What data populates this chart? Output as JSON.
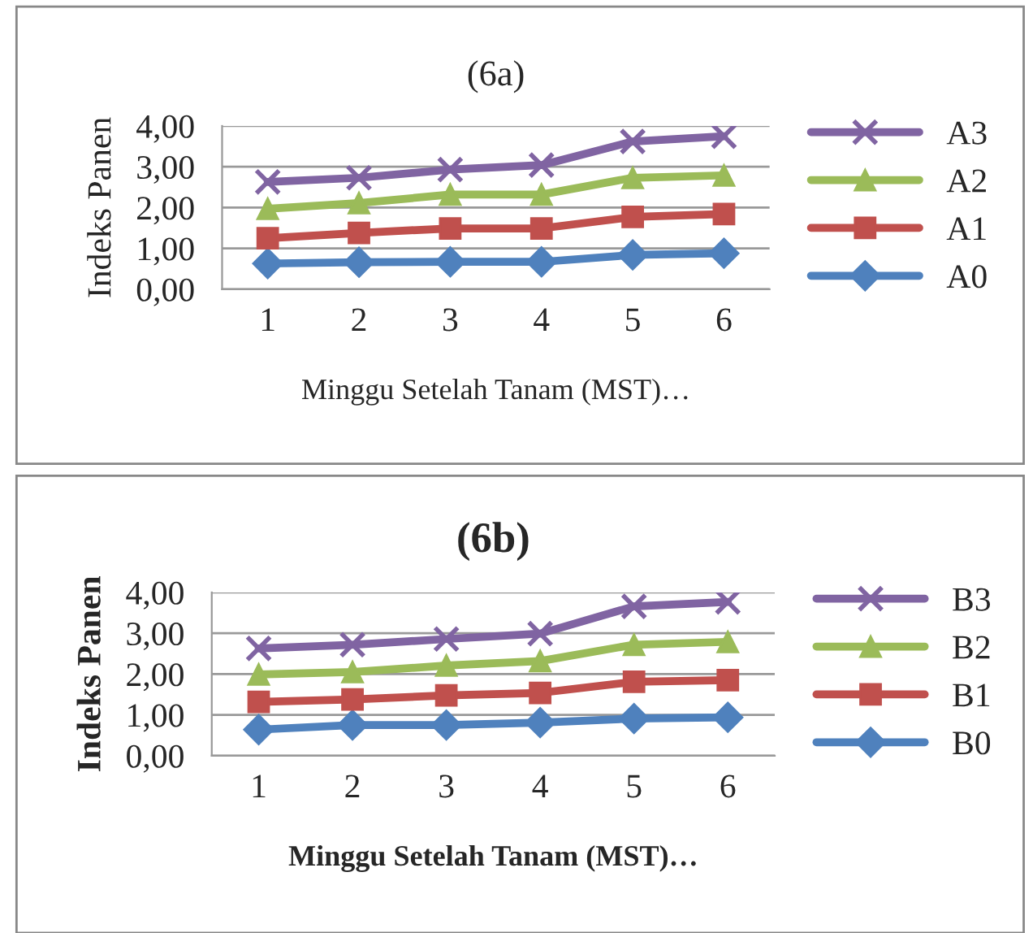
{
  "chart_data": [
    {
      "type": "line",
      "title": "(6a)",
      "xlabel": "Minggu Setelah Tanam (MST)…",
      "ylabel": "Indeks Panen",
      "categories": [
        "1",
        "2",
        "3",
        "4",
        "5",
        "6"
      ],
      "ylim": [
        0,
        4
      ],
      "yticks": [
        {
          "value": 0,
          "label": "0,00"
        },
        {
          "value": 1,
          "label": "1,00"
        },
        {
          "value": 2,
          "label": "2,00"
        },
        {
          "value": 3,
          "label": "3,00"
        },
        {
          "value": 4,
          "label": "4,00"
        }
      ],
      "grid": "y",
      "legend": "right",
      "series": [
        {
          "name": "A0",
          "color": "#4f81bd",
          "marker": "diamond",
          "values": [
            0.63,
            0.66,
            0.67,
            0.67,
            0.84,
            0.88
          ]
        },
        {
          "name": "A1",
          "color": "#c0504d",
          "marker": "square",
          "values": [
            1.25,
            1.38,
            1.49,
            1.49,
            1.77,
            1.84
          ]
        },
        {
          "name": "A2",
          "color": "#9bbb59",
          "marker": "triangle",
          "values": [
            1.97,
            2.11,
            2.32,
            2.32,
            2.73,
            2.79
          ]
        },
        {
          "name": "A3",
          "color": "#8064a2",
          "marker": "cross",
          "values": [
            2.63,
            2.73,
            2.93,
            3.04,
            3.62,
            3.75
          ]
        }
      ]
    },
    {
      "type": "line",
      "title": "(6b)",
      "xlabel": "Minggu Setelah Tanam (MST)…",
      "ylabel": "Indeks Panen",
      "categories": [
        "1",
        "2",
        "3",
        "4",
        "5",
        "6"
      ],
      "ylim": [
        0,
        4
      ],
      "yticks": [
        {
          "value": 0,
          "label": "0,00"
        },
        {
          "value": 1,
          "label": "1,00"
        },
        {
          "value": 2,
          "label": "2,00"
        },
        {
          "value": 3,
          "label": "3,00"
        },
        {
          "value": 4,
          "label": "4,00"
        }
      ],
      "grid": "y",
      "legend": "right",
      "series": [
        {
          "name": "B0",
          "color": "#4f81bd",
          "marker": "diamond",
          "values": [
            0.64,
            0.75,
            0.75,
            0.81,
            0.91,
            0.94
          ]
        },
        {
          "name": "B1",
          "color": "#c0504d",
          "marker": "square",
          "values": [
            1.32,
            1.38,
            1.48,
            1.54,
            1.81,
            1.85
          ]
        },
        {
          "name": "B2",
          "color": "#9bbb59",
          "marker": "triangle",
          "values": [
            1.99,
            2.05,
            2.21,
            2.32,
            2.72,
            2.79
          ]
        },
        {
          "name": "B3",
          "color": "#8064a2",
          "marker": "cross",
          "values": [
            2.63,
            2.72,
            2.86,
            2.99,
            3.66,
            3.77
          ]
        }
      ]
    }
  ]
}
